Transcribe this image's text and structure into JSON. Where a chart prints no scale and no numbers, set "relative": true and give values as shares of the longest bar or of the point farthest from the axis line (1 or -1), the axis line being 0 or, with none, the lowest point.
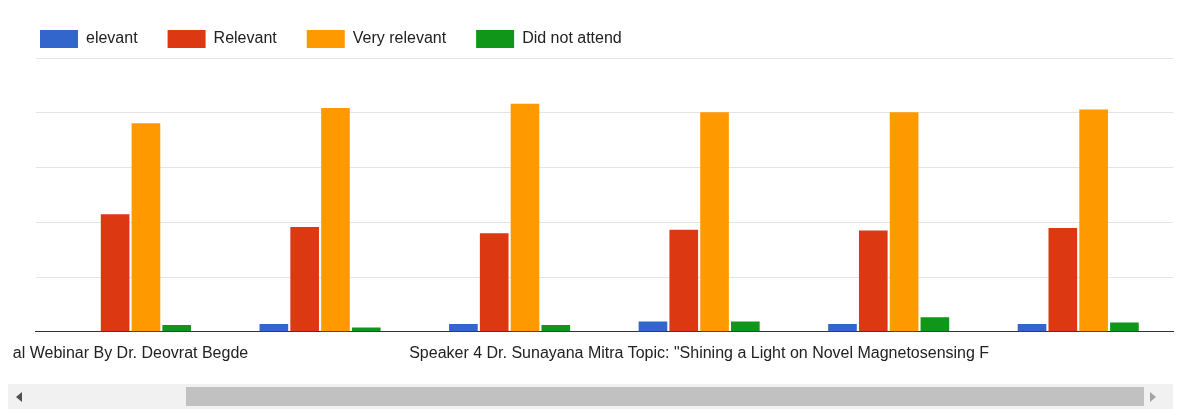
{
  "chart_data": {
    "type": "bar",
    "relative": true,
    "grid": "y",
    "legend": "top left",
    "categories": [
      "al Webinar By Dr. Deovrat Begde",
      null,
      null,
      "Speaker 4 Dr. Sunayana Mitra Topic: \"Shining a Light on Novel Magnetosensing F",
      null,
      null
    ],
    "series": [
      {
        "name": "elevant",
        "color": "#3366cc",
        "values": [
          null,
          0.034,
          0.034,
          0.045,
          0.034,
          0.034
        ]
      },
      {
        "name": "Relevant",
        "color": "#dc3912",
        "values": [
          0.515,
          0.459,
          0.432,
          0.447,
          0.444,
          0.455
        ]
      },
      {
        "name": "Very relevant",
        "color": "#ff9900",
        "values": [
          0.914,
          0.981,
          1,
          0.962,
          0.962,
          0.974
        ]
      },
      {
        "name": "Did not attend",
        "color": "#109618",
        "values": [
          0.03,
          0.019,
          0.03,
          0.045,
          0.064,
          0.041
        ]
      }
    ]
  }
}
